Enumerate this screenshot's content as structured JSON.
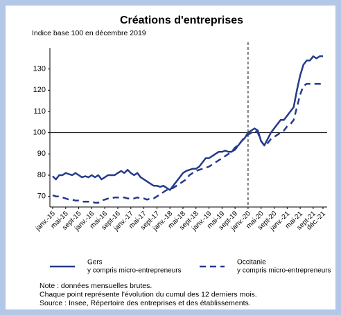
{
  "chart_data": {
    "type": "line",
    "title": "Créations d'entreprises",
    "subtitle": "Indice base 100 en décembre 2019",
    "categories": [
      "janv.-15",
      null,
      null,
      null,
      "mai-15",
      null,
      null,
      null,
      "sept-15",
      null,
      null,
      null,
      "janv.-16",
      null,
      null,
      null,
      "mai-16",
      null,
      null,
      null,
      "sept-16",
      null,
      null,
      null,
      "janv.-17",
      null,
      null,
      null,
      "mai-17",
      null,
      null,
      null,
      "sept-17",
      null,
      null,
      null,
      "janv.-18",
      null,
      null,
      null,
      "mai-18",
      null,
      null,
      null,
      "sept-18",
      null,
      null,
      null,
      "janv.-19",
      null,
      null,
      null,
      "mai-19",
      null,
      null,
      null,
      "sept-19",
      null,
      null,
      null,
      "janv.-20",
      null,
      null,
      null,
      "mai-20",
      null,
      null,
      null,
      "sept-20",
      null,
      null,
      null,
      "janv.-21",
      null,
      null,
      null,
      "mai-21",
      null,
      null,
      null,
      "sept-21",
      null,
      null,
      "déc.-21"
    ],
    "series": [
      {
        "name": "Gers",
        "legend_sublabel": "y compris micro-entrepreneurs",
        "color": "#243a8c",
        "dashed": false,
        "values": [
          79.5,
          78,
          80,
          80,
          81,
          80.5,
          80,
          81,
          80,
          79,
          79.5,
          79,
          80,
          79,
          80,
          78,
          79,
          80,
          80,
          80,
          81,
          82,
          81,
          82.5,
          81,
          80,
          81,
          79,
          78,
          77,
          76,
          75,
          75,
          74.5,
          75,
          74,
          73,
          75,
          77,
          79,
          81,
          82,
          82.5,
          83,
          83,
          84,
          86,
          88,
          88,
          89,
          90,
          91,
          91,
          91.5,
          91,
          91,
          93,
          94,
          96,
          97.5,
          100,
          101,
          102,
          101,
          96,
          94,
          97,
          100,
          102,
          104,
          106,
          106,
          108,
          110,
          112,
          120,
          127,
          132,
          134,
          134,
          136,
          135,
          136,
          136
        ]
      },
      {
        "name": "Occitanie",
        "legend_sublabel": "y compris micro-entrepreneurs",
        "color": "#243a8c",
        "dashed": true,
        "values": [
          70.5,
          70,
          70,
          69.5,
          69,
          68.5,
          68.5,
          68,
          68,
          67.5,
          67.5,
          67.5,
          67.5,
          67,
          67,
          68,
          68.5,
          69,
          69,
          69.5,
          69.5,
          69.5,
          69.5,
          69,
          69,
          69,
          69.5,
          69,
          69,
          68.5,
          69,
          69,
          70,
          71,
          72,
          73,
          73.5,
          74,
          75,
          76,
          77,
          78,
          80,
          81,
          82,
          82.5,
          83,
          83.5,
          84,
          85,
          86,
          87,
          88,
          89,
          90,
          91,
          92,
          94,
          96,
          98,
          99,
          100,
          101,
          100,
          96,
          94,
          95,
          97,
          98,
          99,
          100,
          101,
          103,
          104,
          106,
          112,
          118,
          122,
          123,
          123,
          123,
          123,
          123,
          123
        ]
      }
    ],
    "ylim": [
      65,
      140
    ],
    "yticks": [
      70,
      80,
      90,
      100,
      110,
      120,
      130
    ],
    "hline": 100,
    "vline": "janv.-20",
    "notes": [
      "Note : données mensuelles brutes.",
      "Chaque point représente l'évolution du cumul des 12 derniers mois.",
      "Source : Insee, Répertoire des entreprises et des établissements."
    ]
  }
}
